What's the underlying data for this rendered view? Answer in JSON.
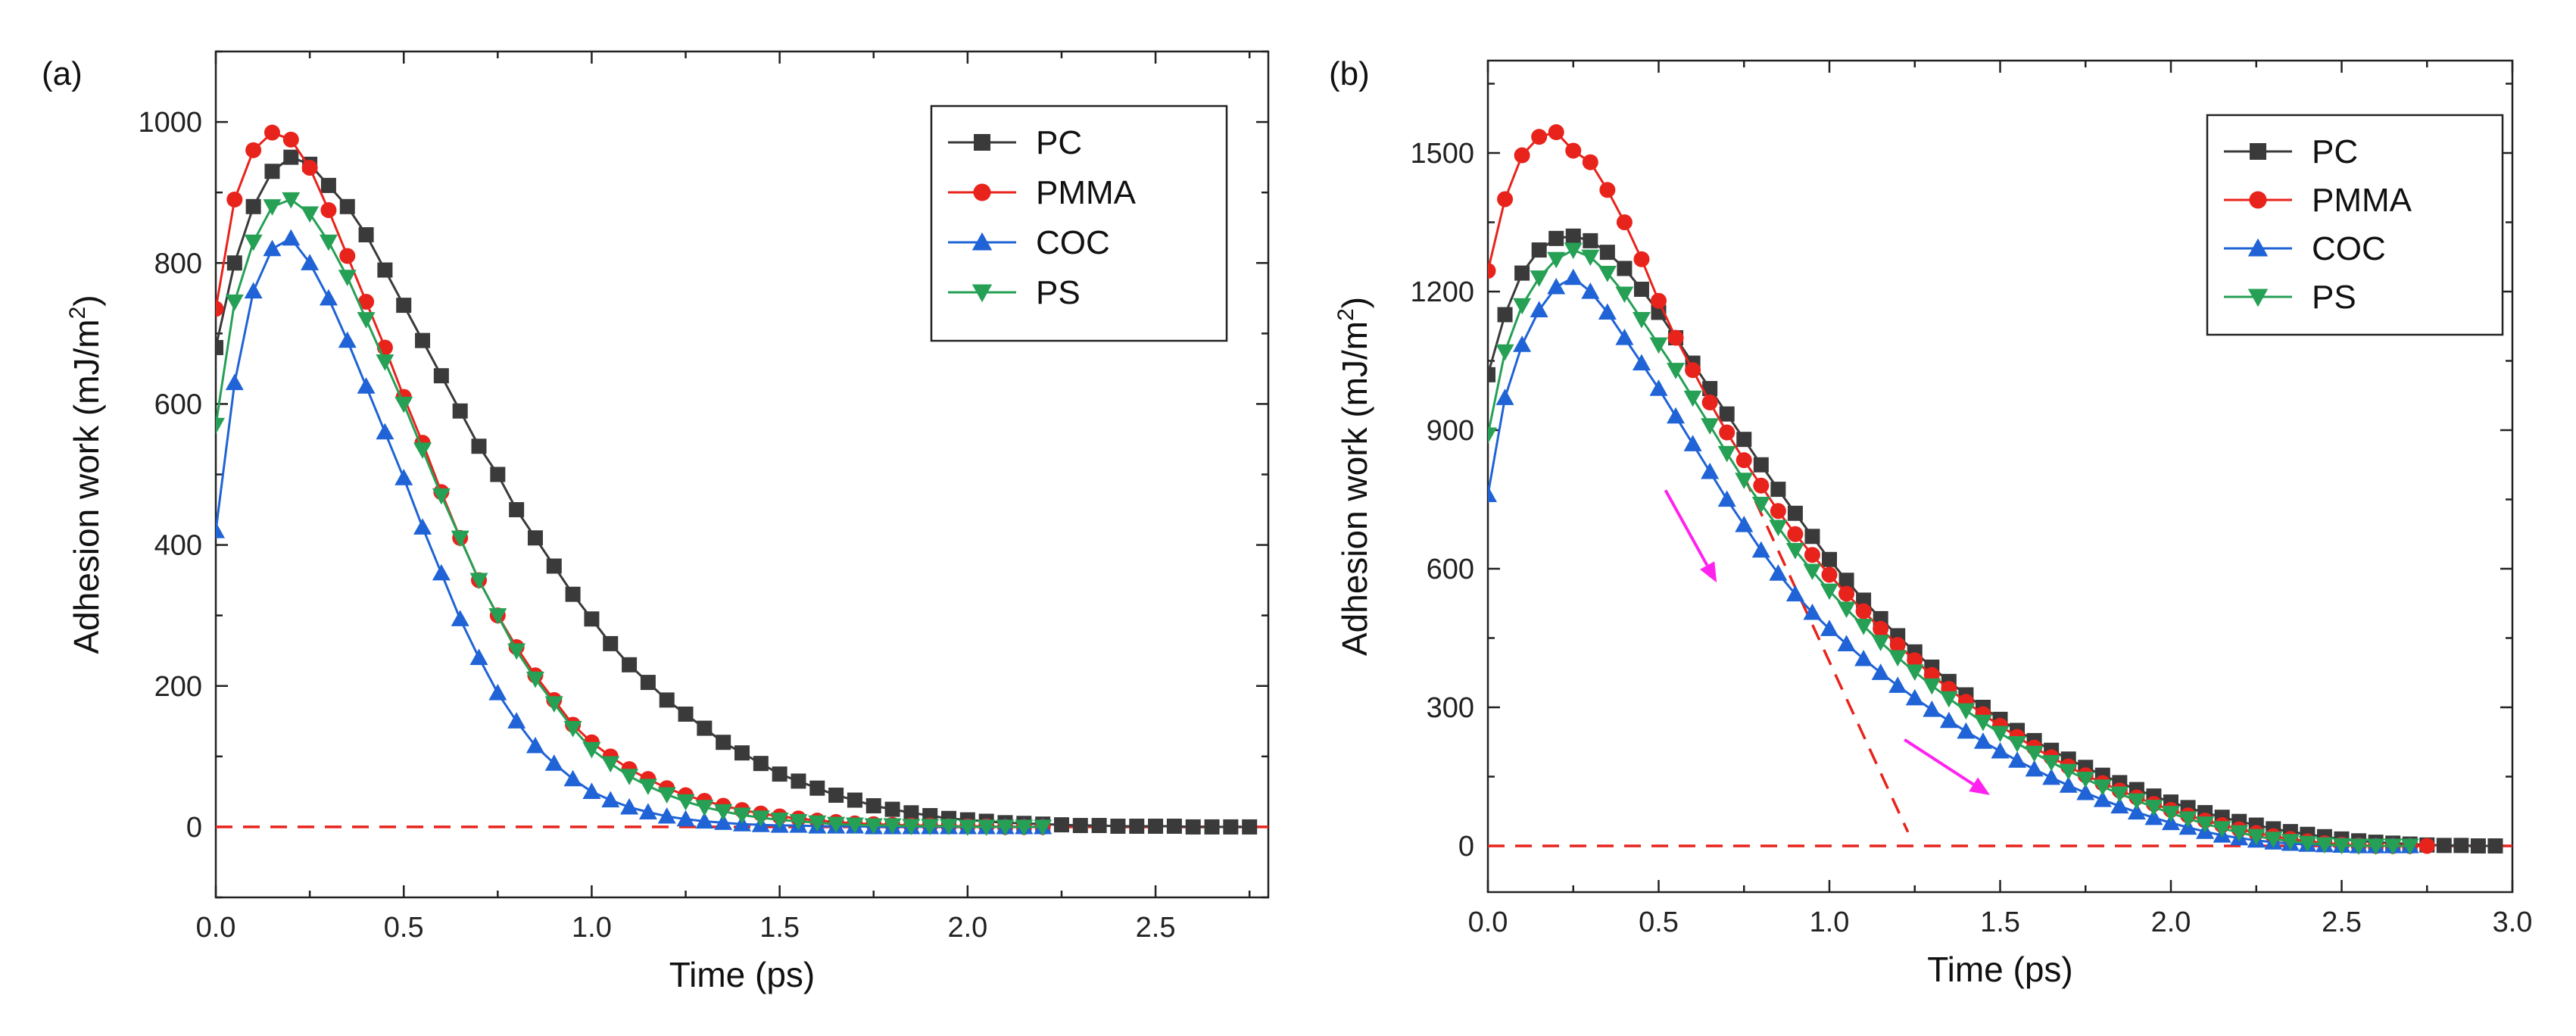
{
  "chart_data": [
    {
      "type": "line",
      "panel_label": "(a)",
      "xlabel": "Time (ps)",
      "ylabel": "Adhesion work (mJ/m",
      "ylabel_sup": "2",
      "ylabel_close": ")",
      "xlim": [
        0,
        2.8
      ],
      "ylim": [
        -100,
        1100
      ],
      "xticks": [
        0,
        0.5,
        1.0,
        1.5,
        2.0,
        2.5
      ],
      "xtick_labels": [
        "0.0",
        "0.5",
        "1.0",
        "1.5",
        "2.0",
        "2.5"
      ],
      "yticks": [
        0,
        200,
        400,
        600,
        800,
        1000
      ],
      "ytick_labels": [
        "0",
        "200",
        "400",
        "600",
        "800",
        "1000"
      ],
      "minor_xticks": [
        0.25,
        0.75,
        1.25,
        1.75,
        2.25,
        2.75
      ],
      "minor_yticks": [
        -100,
        100,
        300,
        500,
        700,
        900,
        1100
      ],
      "legend": [
        "PC",
        "PMMA",
        "COC",
        "PS"
      ],
      "legend_position": "top-right",
      "reference_lines": [
        {
          "name": "zero-line",
          "style": "dashed",
          "color": "#e8231c",
          "points": [
            [
              0,
              0
            ],
            [
              2.8,
              0
            ]
          ]
        }
      ],
      "arrows": [],
      "series": [
        {
          "name": "PC",
          "color": "#3a3a3a",
          "marker": "square",
          "x": [
            0.0,
            0.05,
            0.1,
            0.15,
            0.2,
            0.25,
            0.3,
            0.35,
            0.4,
            0.45,
            0.5,
            0.55,
            0.6,
            0.65,
            0.7,
            0.75,
            0.8,
            0.85,
            0.9,
            0.95,
            1.0,
            1.05,
            1.1,
            1.15,
            1.2,
            1.25,
            1.3,
            1.35,
            1.4,
            1.45,
            1.5,
            1.55,
            1.6,
            1.65,
            1.7,
            1.75,
            1.8,
            1.85,
            1.9,
            1.95,
            2.0,
            2.05,
            2.1,
            2.15,
            2.2,
            2.25,
            2.3,
            2.35,
            2.4,
            2.45,
            2.5,
            2.55,
            2.6,
            2.65,
            2.7,
            2.75
          ],
          "y": [
            680,
            800,
            880,
            930,
            950,
            940,
            910,
            880,
            840,
            790,
            740,
            690,
            640,
            590,
            540,
            500,
            450,
            410,
            370,
            330,
            295,
            260,
            230,
            205,
            180,
            160,
            140,
            120,
            105,
            90,
            75,
            65,
            55,
            45,
            38,
            30,
            25,
            20,
            16,
            12,
            10,
            8,
            6,
            5,
            4,
            3,
            2,
            2,
            1,
            1,
            1,
            1,
            0,
            0,
            0,
            0
          ]
        },
        {
          "name": "PMMA",
          "color": "#e8231c",
          "marker": "circle",
          "x": [
            0.0,
            0.05,
            0.1,
            0.15,
            0.2,
            0.25,
            0.3,
            0.35,
            0.4,
            0.45,
            0.5,
            0.55,
            0.6,
            0.65,
            0.7,
            0.75,
            0.8,
            0.85,
            0.9,
            0.95,
            1.0,
            1.05,
            1.1,
            1.15,
            1.2,
            1.25,
            1.3,
            1.35,
            1.4,
            1.45,
            1.5,
            1.55,
            1.6,
            1.65,
            1.7,
            1.75,
            1.8,
            1.85,
            1.9,
            1.95,
            2.0,
            2.05,
            2.1,
            2.15,
            2.2
          ],
          "y": [
            735,
            890,
            960,
            985,
            975,
            935,
            875,
            810,
            745,
            680,
            610,
            545,
            475,
            410,
            350,
            300,
            255,
            215,
            180,
            145,
            120,
            100,
            82,
            68,
            55,
            45,
            37,
            30,
            24,
            19,
            15,
            12,
            9,
            7,
            5,
            4,
            3,
            2,
            2,
            1,
            1,
            1,
            0,
            0,
            0
          ]
        },
        {
          "name": "COC",
          "color": "#1f63d6",
          "marker": "triangle-up",
          "x": [
            0.0,
            0.05,
            0.1,
            0.15,
            0.2,
            0.25,
            0.3,
            0.35,
            0.4,
            0.45,
            0.5,
            0.55,
            0.6,
            0.65,
            0.7,
            0.75,
            0.8,
            0.85,
            0.9,
            0.95,
            1.0,
            1.05,
            1.1,
            1.15,
            1.2,
            1.25,
            1.3,
            1.35,
            1.4,
            1.45,
            1.5,
            1.55,
            1.6,
            1.65,
            1.7,
            1.75,
            1.8,
            1.85,
            1.9,
            1.95,
            2.0,
            2.05,
            2.1,
            2.15,
            2.2
          ],
          "y": [
            420,
            630,
            760,
            820,
            835,
            800,
            750,
            690,
            625,
            560,
            495,
            425,
            360,
            295,
            240,
            190,
            150,
            115,
            90,
            68,
            50,
            38,
            28,
            21,
            15,
            11,
            8,
            6,
            4,
            3,
            2,
            2,
            1,
            1,
            1,
            0,
            0,
            0,
            0,
            0,
            0,
            0,
            0,
            0,
            0
          ]
        },
        {
          "name": "PS",
          "color": "#25a055",
          "marker": "triangle-down",
          "x": [
            0.0,
            0.05,
            0.1,
            0.15,
            0.2,
            0.25,
            0.3,
            0.35,
            0.4,
            0.45,
            0.5,
            0.55,
            0.6,
            0.65,
            0.7,
            0.75,
            0.8,
            0.85,
            0.9,
            0.95,
            1.0,
            1.05,
            1.1,
            1.15,
            1.2,
            1.25,
            1.3,
            1.35,
            1.4,
            1.45,
            1.5,
            1.55,
            1.6,
            1.65,
            1.7,
            1.75,
            1.8,
            1.85,
            1.9,
            1.95,
            2.0,
            2.05,
            2.1,
            2.15,
            2.2
          ],
          "y": [
            570,
            745,
            830,
            880,
            890,
            870,
            830,
            780,
            720,
            660,
            600,
            535,
            470,
            410,
            350,
            300,
            250,
            210,
            175,
            140,
            110,
            90,
            72,
            58,
            46,
            36,
            28,
            22,
            17,
            13,
            10,
            8,
            6,
            4,
            3,
            2,
            2,
            1,
            1,
            1,
            0,
            0,
            0,
            0,
            0
          ]
        }
      ]
    },
    {
      "type": "line",
      "panel_label": "(b)",
      "xlabel": "Time (ps)",
      "ylabel": "Adhesion work (mJ/m",
      "ylabel_sup": "2",
      "ylabel_close": ")",
      "xlim": [
        0,
        3.0
      ],
      "ylim": [
        -100,
        1700
      ],
      "xticks": [
        0,
        0.5,
        1.0,
        1.5,
        2.0,
        2.5,
        3.0
      ],
      "xtick_labels": [
        "0.0",
        "0.5",
        "1.0",
        "1.5",
        "2.0",
        "2.5",
        "3.0"
      ],
      "yticks": [
        0,
        300,
        600,
        900,
        1200,
        1500
      ],
      "ytick_labels": [
        "0",
        "300",
        "600",
        "900",
        "1200",
        "1500"
      ],
      "minor_xticks": [
        0.25,
        0.75,
        1.25,
        1.75,
        2.25,
        2.75
      ],
      "minor_yticks": [
        150,
        450,
        750,
        1050,
        1350,
        1650
      ],
      "legend": [
        "PC",
        "PMMA",
        "COC",
        "PS"
      ],
      "legend_position": "top-right",
      "reference_lines": [
        {
          "name": "zero-line",
          "style": "dashed",
          "color": "#e8231c",
          "points": [
            [
              0,
              0
            ],
            [
              3.0,
              0
            ]
          ]
        },
        {
          "name": "tangent-line",
          "style": "dashed",
          "color": "#e8231c",
          "points": [
            [
              0.75,
              800
            ],
            [
              1.23,
              30
            ]
          ]
        }
      ],
      "arrows": [
        {
          "name": "arrow-steep",
          "color": "#ff22ee",
          "from": [
            0.52,
            770
          ],
          "to": [
            0.67,
            570
          ]
        },
        {
          "name": "arrow-shallow",
          "color": "#ff22ee",
          "from": [
            1.22,
            230
          ],
          "to": [
            1.47,
            110
          ]
        }
      ],
      "series": [
        {
          "name": "PC",
          "color": "#3a3a3a",
          "marker": "square",
          "x": [
            0.0,
            0.05,
            0.1,
            0.15,
            0.2,
            0.25,
            0.3,
            0.35,
            0.4,
            0.45,
            0.5,
            0.55,
            0.6,
            0.65,
            0.7,
            0.75,
            0.8,
            0.85,
            0.9,
            0.95,
            1.0,
            1.05,
            1.1,
            1.15,
            1.2,
            1.25,
            1.3,
            1.35,
            1.4,
            1.45,
            1.5,
            1.55,
            1.6,
            1.65,
            1.7,
            1.75,
            1.8,
            1.85,
            1.9,
            1.95,
            2.0,
            2.05,
            2.1,
            2.15,
            2.2,
            2.25,
            2.3,
            2.35,
            2.4,
            2.45,
            2.5,
            2.55,
            2.6,
            2.65,
            2.7,
            2.75,
            2.8,
            2.85,
            2.9,
            2.95
          ],
          "y": [
            1020,
            1150,
            1240,
            1290,
            1315,
            1320,
            1310,
            1285,
            1250,
            1205,
            1155,
            1100,
            1045,
            990,
            935,
            880,
            825,
            772,
            720,
            670,
            620,
            575,
            532,
            492,
            455,
            420,
            387,
            356,
            327,
            300,
            274,
            250,
            228,
            207,
            188,
            170,
            153,
            137,
            122,
            108,
            95,
            83,
            72,
            62,
            53,
            45,
            37,
            31,
            25,
            20,
            15,
            11,
            8,
            6,
            4,
            2,
            1,
            1,
            0,
            0
          ]
        },
        {
          "name": "PMMA",
          "color": "#e8231c",
          "marker": "circle",
          "x": [
            0.0,
            0.05,
            0.1,
            0.15,
            0.2,
            0.25,
            0.3,
            0.35,
            0.4,
            0.45,
            0.5,
            0.55,
            0.6,
            0.65,
            0.7,
            0.75,
            0.8,
            0.85,
            0.9,
            0.95,
            1.0,
            1.05,
            1.1,
            1.15,
            1.2,
            1.25,
            1.3,
            1.35,
            1.4,
            1.45,
            1.5,
            1.55,
            1.6,
            1.65,
            1.7,
            1.75,
            1.8,
            1.85,
            1.9,
            1.95,
            2.0,
            2.05,
            2.1,
            2.15,
            2.2,
            2.25,
            2.3,
            2.35,
            2.4,
            2.45,
            2.5,
            2.55,
            2.6,
            2.65,
            2.7,
            2.75
          ],
          "y": [
            1245,
            1400,
            1495,
            1535,
            1545,
            1505,
            1480,
            1420,
            1350,
            1270,
            1180,
            1100,
            1030,
            960,
            895,
            835,
            780,
            725,
            675,
            630,
            587,
            546,
            508,
            470,
            435,
            402,
            370,
            340,
            312,
            285,
            260,
            236,
            213,
            192,
            172,
            153,
            136,
            120,
            105,
            91,
            78,
            66,
            55,
            45,
            36,
            28,
            21,
            15,
            10,
            6,
            3,
            1,
            0,
            0,
            0,
            0
          ]
        },
        {
          "name": "COC",
          "color": "#1f63d6",
          "marker": "triangle-up",
          "x": [
            0.0,
            0.05,
            0.1,
            0.15,
            0.2,
            0.25,
            0.3,
            0.35,
            0.4,
            0.45,
            0.5,
            0.55,
            0.6,
            0.65,
            0.7,
            0.75,
            0.8,
            0.85,
            0.9,
            0.95,
            1.0,
            1.05,
            1.1,
            1.15,
            1.2,
            1.25,
            1.3,
            1.35,
            1.4,
            1.45,
            1.5,
            1.55,
            1.6,
            1.65,
            1.7,
            1.75,
            1.8,
            1.85,
            1.9,
            1.95,
            2.0,
            2.05,
            2.1,
            2.15,
            2.2,
            2.25,
            2.3,
            2.35,
            2.4,
            2.45,
            2.5,
            2.55,
            2.6,
            2.65,
            2.7
          ],
          "y": [
            760,
            970,
            1085,
            1160,
            1210,
            1230,
            1200,
            1155,
            1100,
            1045,
            990,
            930,
            870,
            810,
            750,
            695,
            640,
            590,
            545,
            505,
            470,
            437,
            405,
            375,
            347,
            320,
            295,
            271,
            248,
            226,
            205,
            185,
            166,
            148,
            131,
            115,
            100,
            86,
            73,
            61,
            50,
            40,
            31,
            23,
            17,
            12,
            8,
            5,
            3,
            2,
            1,
            0,
            0,
            0,
            0
          ]
        },
        {
          "name": "PS",
          "color": "#25a055",
          "marker": "triangle-down",
          "x": [
            0.0,
            0.05,
            0.1,
            0.15,
            0.2,
            0.25,
            0.3,
            0.35,
            0.4,
            0.45,
            0.5,
            0.55,
            0.6,
            0.65,
            0.7,
            0.75,
            0.8,
            0.85,
            0.9,
            0.95,
            1.0,
            1.05,
            1.1,
            1.15,
            1.2,
            1.25,
            1.3,
            1.35,
            1.4,
            1.45,
            1.5,
            1.55,
            1.6,
            1.65,
            1.7,
            1.75,
            1.8,
            1.85,
            1.9,
            1.95,
            2.0,
            2.05,
            2.1,
            2.15,
            2.2,
            2.25,
            2.3,
            2.35,
            2.4,
            2.45,
            2.5,
            2.55,
            2.6,
            2.65,
            2.7
          ],
          "y": [
            890,
            1070,
            1170,
            1230,
            1270,
            1290,
            1275,
            1240,
            1195,
            1140,
            1085,
            1030,
            970,
            910,
            850,
            792,
            740,
            690,
            640,
            595,
            552,
            513,
            476,
            441,
            408,
            377,
            347,
            319,
            293,
            268,
            244,
            222,
            201,
            181,
            162,
            145,
            128,
            113,
            98,
            84,
            71,
            59,
            48,
            38,
            29,
            21,
            15,
            10,
            6,
            3,
            1,
            0,
            0,
            0,
            0
          ]
        }
      ]
    }
  ]
}
